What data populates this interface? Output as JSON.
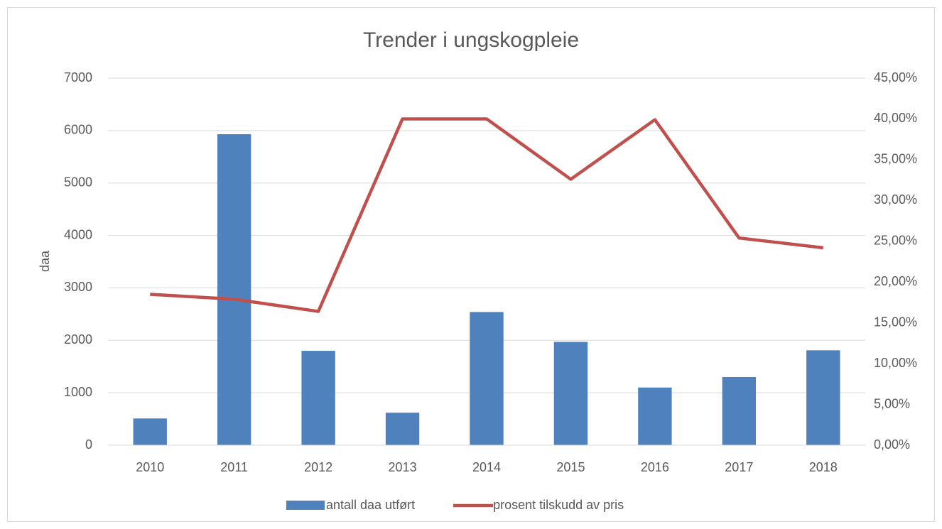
{
  "chart_data": {
    "type": "bar",
    "title": "Trender i ungskogpleie",
    "ylabel": "daa",
    "categories": [
      "2010",
      "2011",
      "2012",
      "2013",
      "2014",
      "2015",
      "2016",
      "2017",
      "2018"
    ],
    "series": [
      {
        "name": "antall daa utført",
        "type": "bar",
        "color": "#4f81bd",
        "values": [
          510,
          5930,
          1800,
          620,
          2540,
          1970,
          1100,
          1300,
          1810
        ]
      },
      {
        "name": "prosent tilskudd av pris",
        "type": "line",
        "axis": "y2",
        "color": "#c0504d",
        "values": [
          18.5,
          17.9,
          16.4,
          40.0,
          40.0,
          32.6,
          39.9,
          25.4,
          24.2
        ]
      }
    ],
    "ylim": [
      0,
      7000
    ],
    "yticks": [
      0,
      1000,
      2000,
      3000,
      4000,
      5000,
      6000,
      7000
    ],
    "y2lim": [
      0,
      45
    ],
    "y2ticks": [
      {
        "value": 0,
        "label": "0,00%"
      },
      {
        "value": 5,
        "label": "5,00%"
      },
      {
        "value": 10,
        "label": "10,00%"
      },
      {
        "value": 15,
        "label": "15,00%"
      },
      {
        "value": 20,
        "label": "20,00%"
      },
      {
        "value": 25,
        "label": "25,00%"
      },
      {
        "value": 30,
        "label": "30,00%"
      },
      {
        "value": 35,
        "label": "35,00%"
      },
      {
        "value": 40,
        "label": "40,00%"
      },
      {
        "value": 45,
        "label": "45,00%"
      }
    ],
    "grid": true,
    "legend": "bottom"
  }
}
